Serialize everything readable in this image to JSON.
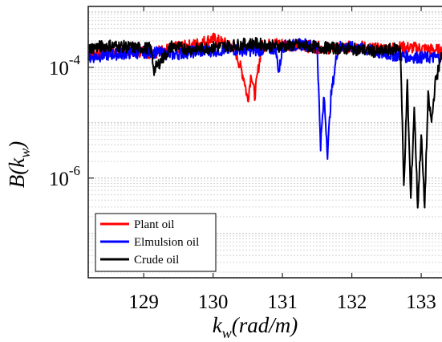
{
  "chart_data": {
    "type": "line",
    "title": "",
    "xlabel": {
      "base": "k",
      "sub": "w",
      "rest": "(rad/m)"
    },
    "ylabel": {
      "pre": "B(k",
      "sub": "w",
      "post": ")"
    },
    "xlim": [
      128.2,
      133.3
    ],
    "ylim_exp": [
      -7.8,
      -2.9
    ],
    "yscale": "log",
    "grid": "horizontal minor dotted",
    "xticks": [
      129,
      130,
      131,
      132,
      133
    ],
    "xtick_labels": [
      "129",
      "130",
      "131",
      "132",
      "133"
    ],
    "ytick_exps": [
      -4,
      -6
    ],
    "ytick_labels": [
      {
        "base": "10",
        "exp": "-4"
      },
      {
        "base": "10",
        "exp": "-6"
      }
    ],
    "legend_placement": "bottom-left",
    "series": [
      {
        "name": "Plant oil",
        "color": "#ff0000",
        "x": [
          128.2,
          128.5,
          128.8,
          129.1,
          129.4,
          129.7,
          130.0,
          130.2,
          130.3,
          130.45,
          130.5,
          130.55,
          130.6,
          130.65,
          130.7,
          130.9,
          131.2,
          131.5,
          131.8,
          132.1,
          132.4,
          132.7,
          133.0,
          133.3
        ],
        "y": [
          0.00017,
          0.00019,
          0.00021,
          0.00018,
          0.00022,
          0.00025,
          0.00033,
          0.00026,
          0.00024,
          6e-05,
          2.5e-05,
          8e-05,
          3e-05,
          9e-05,
          0.00024,
          0.00027,
          0.00025,
          0.00023,
          0.00022,
          0.00024,
          0.00021,
          0.00023,
          0.00022,
          0.0002
        ]
      },
      {
        "name": "Elmulsion oil",
        "color": "#0000ff",
        "x": [
          128.2,
          128.5,
          128.8,
          129.1,
          129.4,
          129.7,
          130.0,
          130.3,
          130.6,
          130.9,
          130.95,
          131.0,
          131.3,
          131.5,
          131.55,
          131.6,
          131.65,
          131.7,
          131.8,
          132.1,
          132.4,
          132.7,
          133.0,
          133.3
        ],
        "y": [
          0.00015,
          0.00017,
          0.00018,
          0.00019,
          0.00017,
          0.00019,
          0.0002,
          0.00021,
          0.0002,
          0.00022,
          8e-05,
          0.00024,
          0.00026,
          0.00024,
          4e-06,
          3e-05,
          2.8e-06,
          3e-05,
          0.00024,
          0.00022,
          0.00018,
          0.00016,
          0.00015,
          0.00015
        ]
      },
      {
        "name": "Crude oil",
        "color": "#000000",
        "x": [
          128.2,
          128.5,
          128.8,
          129.1,
          129.15,
          129.4,
          129.7,
          130.0,
          130.3,
          130.6,
          130.9,
          131.2,
          131.5,
          131.8,
          132.1,
          132.4,
          132.7,
          132.75,
          132.8,
          132.85,
          132.9,
          132.95,
          133.0,
          133.05,
          133.1,
          133.15,
          133.2,
          133.3
        ],
        "y": [
          0.00022,
          0.00025,
          0.00023,
          0.00022,
          9e-05,
          0.00024,
          0.00021,
          0.00023,
          0.00025,
          0.00027,
          0.00024,
          0.00025,
          0.00023,
          0.00022,
          0.00021,
          0.00019,
          0.00023,
          7e-07,
          5e-05,
          4e-07,
          2e-05,
          3e-07,
          6e-06,
          3e-07,
          3e-05,
          1e-05,
          5e-05,
          0.00018
        ]
      }
    ]
  }
}
